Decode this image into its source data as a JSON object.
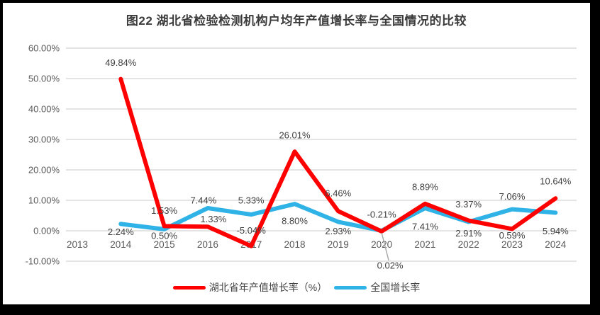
{
  "frame": {
    "background_color": "#000000",
    "card_background_color": "#FFFFFF"
  },
  "chart_data": {
    "type": "line",
    "title": "图22 湖北省检验检测机构户均年产值增长率与全国情况的比较",
    "categories": [
      "2013",
      "2014",
      "2015",
      "2016",
      "2017",
      "2018",
      "2019",
      "2020",
      "2021",
      "2022",
      "2023",
      "2024"
    ],
    "y_axis": {
      "min": -10,
      "max": 60,
      "step": 10,
      "tick_labels": [
        "60.00%",
        "50.00%",
        "40.00%",
        "30.00%",
        "20.00%",
        "10.00%",
        "0.00%",
        "-10.00%"
      ]
    },
    "grid": true,
    "legend_position": "bottom",
    "colors": {
      "grid": "#DCDCDC",
      "axis_text": "#595959",
      "label_text": "#404040",
      "leader_line": "#A6A6A6"
    },
    "series": [
      {
        "key": "hubei-annual-output-growth",
        "name": "湖北省年产值增长率（%）",
        "color": "#FF0000",
        "values": [
          null,
          49.84,
          1.53,
          1.33,
          -5.04,
          26.01,
          6.46,
          -0.21,
          8.89,
          3.37,
          0.59,
          10.64
        ],
        "labels": [
          "",
          "49.84%",
          "1.53%",
          "1.33%",
          "-5.04%",
          "26.01%",
          "6.46%",
          "-0.21%",
          "8.89%",
          "3.37%",
          "0.59%",
          "10.64%"
        ],
        "label_offsets": [
          null,
          [
            0,
            -23
          ],
          [
            0,
            -22
          ],
          [
            8,
            -11
          ],
          [
            0,
            -22
          ],
          [
            0,
            -23
          ],
          [
            0,
            -25
          ],
          [
            0,
            -24
          ],
          [
            0,
            -24
          ],
          [
            0,
            -23
          ],
          [
            0,
            9
          ],
          [
            0,
            -24
          ]
        ]
      },
      {
        "key": "national-growth",
        "name": "全国增长率",
        "color": "#2FB3E6",
        "values": [
          null,
          2.24,
          0.5,
          7.44,
          5.33,
          8.8,
          2.93,
          0.02,
          7.41,
          2.91,
          7.06,
          5.94
        ],
        "labels": [
          "",
          "2.24%",
          "0.50%",
          "7.44%",
          "5.33%",
          "8.80%",
          "2.93%",
          "0.02%",
          "7.41%",
          "2.91%",
          "7.06%",
          "5.94%"
        ],
        "label_offsets": [
          null,
          [
            0,
            11
          ],
          [
            0,
            9
          ],
          [
            -6,
            -11
          ],
          [
            0,
            -20
          ],
          [
            0,
            24
          ],
          [
            0,
            13
          ],
          [
            12,
            49
          ],
          [
            0,
            26
          ],
          [
            0,
            16
          ],
          [
            0,
            -18
          ],
          [
            0,
            26
          ]
        ],
        "callout": {
          "index": 7
        }
      }
    ]
  }
}
